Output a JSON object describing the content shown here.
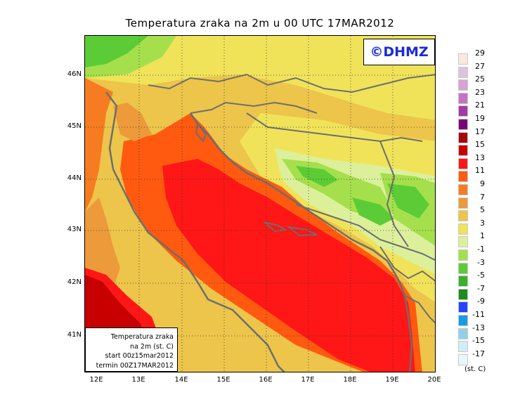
{
  "title": "Temperatura zraka na 2m u 00 UTC 17MAR2012",
  "brand": "©DHMZ",
  "info_box": {
    "lines": [
      "Temperatura zraka",
      "na 2m (st. C)",
      "start 00z15mar2012",
      "termin 00Z17MAR2012"
    ]
  },
  "lat_labels": [
    "46N",
    "45N",
    "44N",
    "43N",
    "42N",
    "41N"
  ],
  "lon_labels": [
    "12E",
    "13E",
    "14E",
    "15E",
    "16E",
    "17E",
    "18E",
    "19E",
    "20E"
  ],
  "legend": {
    "labels": [
      "29",
      "27",
      "25",
      "23",
      "21",
      "19",
      "17",
      "15",
      "13",
      "11",
      "9",
      "7",
      "5",
      "3",
      "1",
      "-1",
      "-3",
      "-5",
      "-7",
      "-9",
      "-11",
      "-13",
      "-15",
      "-17"
    ],
    "colors": [
      "#fbe8dc",
      "#dcc4d8",
      "#d7a3d7",
      "#c670c6",
      "#a23ba5",
      "#7b007b",
      "#a50a0a",
      "#c80000",
      "#ff1616",
      "#ff5a0f",
      "#f77b20",
      "#ec9a3a",
      "#ecc54a",
      "#f0e35a",
      "#dcf09b",
      "#a5e04c",
      "#5ccc36",
      "#38b12b",
      "#1c8c1c",
      "#2244ff",
      "#169be8",
      "#91d1e8",
      "#cdeef8",
      "#e6f8fa"
    ],
    "unit": "(st. C)"
  }
}
